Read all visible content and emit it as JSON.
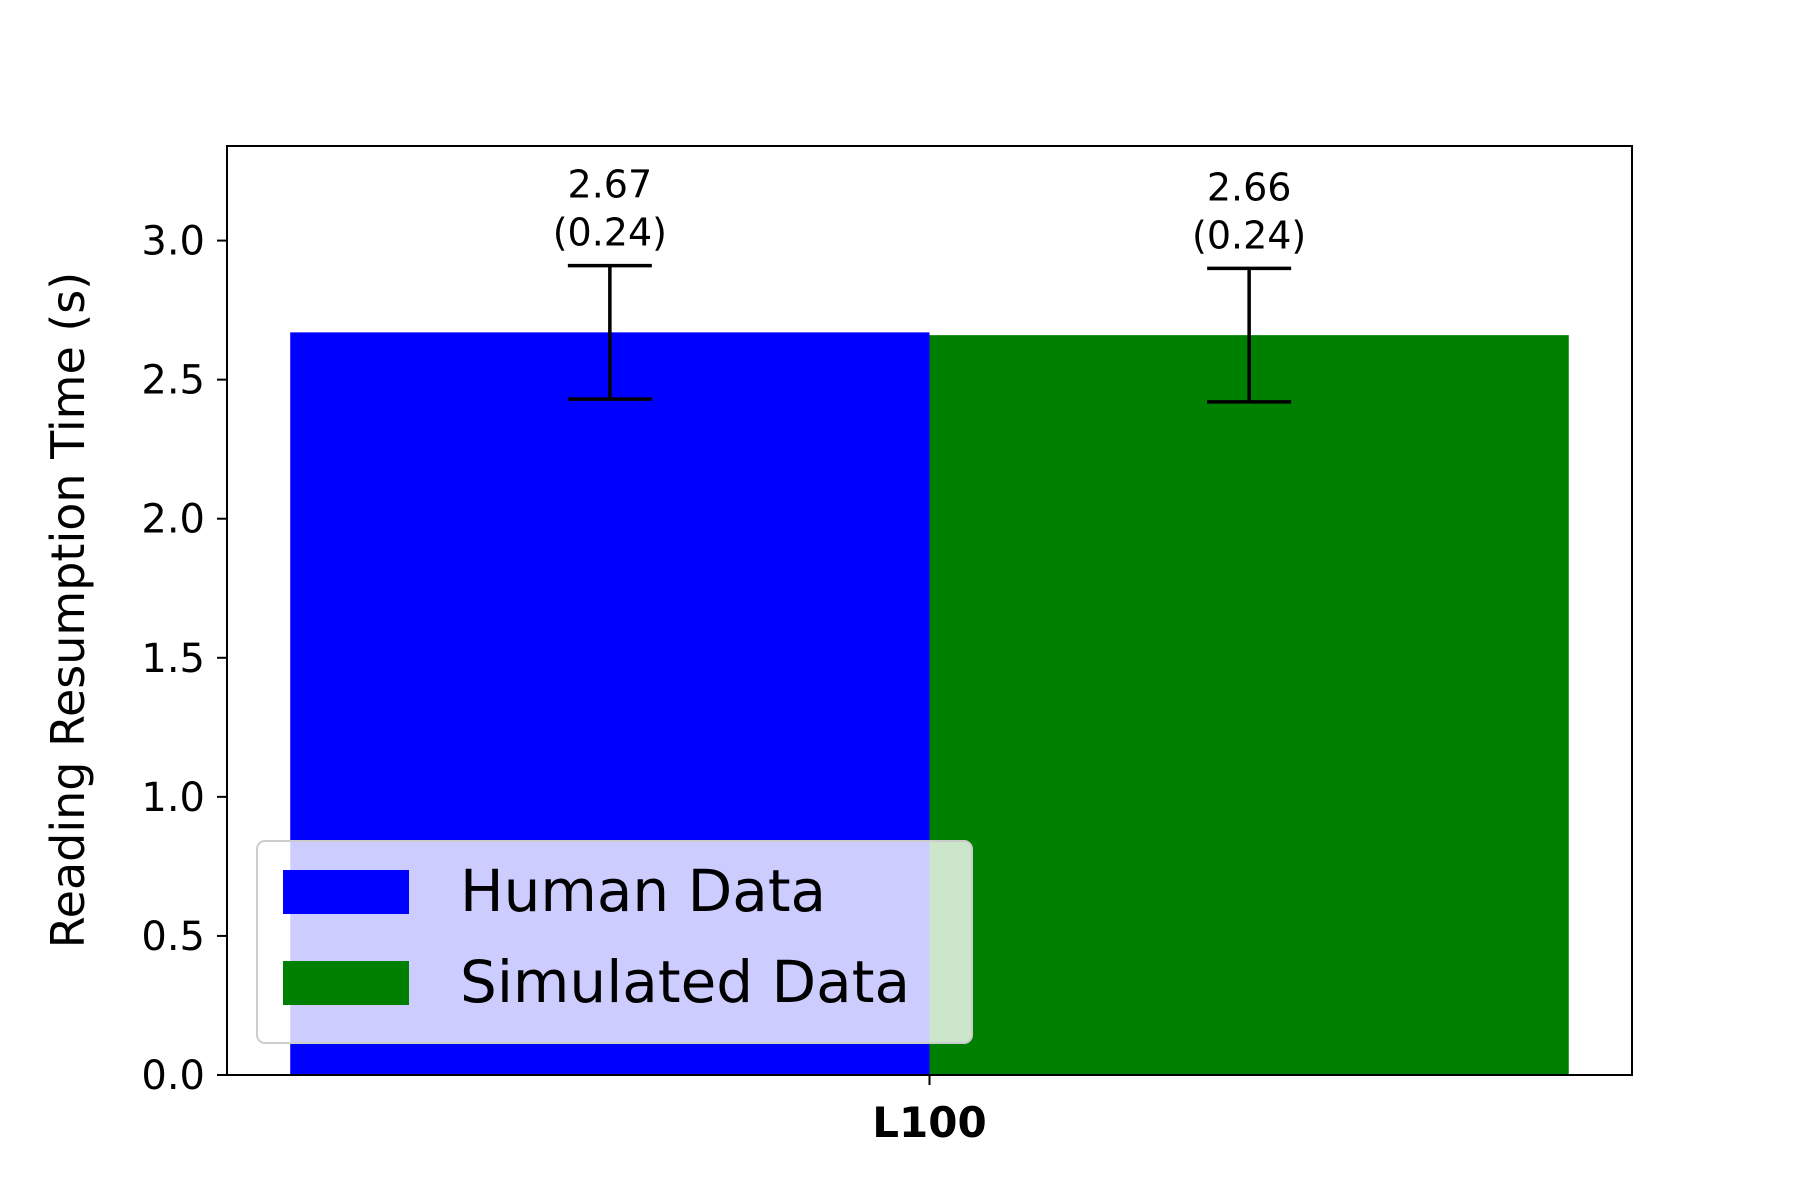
{
  "chart_data": {
    "type": "bar",
    "title": "",
    "xlabel": "",
    "ylabel": "Reading Resumption Time (s)",
    "categories": [
      "L100"
    ],
    "ylim": [
      0,
      3.34
    ],
    "yticks": [
      "0.0",
      "0.5",
      "1.0",
      "1.5",
      "2.0",
      "2.5",
      "3.0"
    ],
    "grid": false,
    "legend_position": "lower-left",
    "series": [
      {
        "name": "Human Data",
        "color": "#0000ff",
        "values": [
          2.67
        ],
        "errors": [
          0.24
        ],
        "labels": [
          "2.67",
          "(0.24)"
        ]
      },
      {
        "name": "Simulated Data",
        "color": "#008000",
        "values": [
          2.66
        ],
        "errors": [
          0.24
        ],
        "labels": [
          "2.66",
          "(0.24)"
        ]
      }
    ]
  }
}
